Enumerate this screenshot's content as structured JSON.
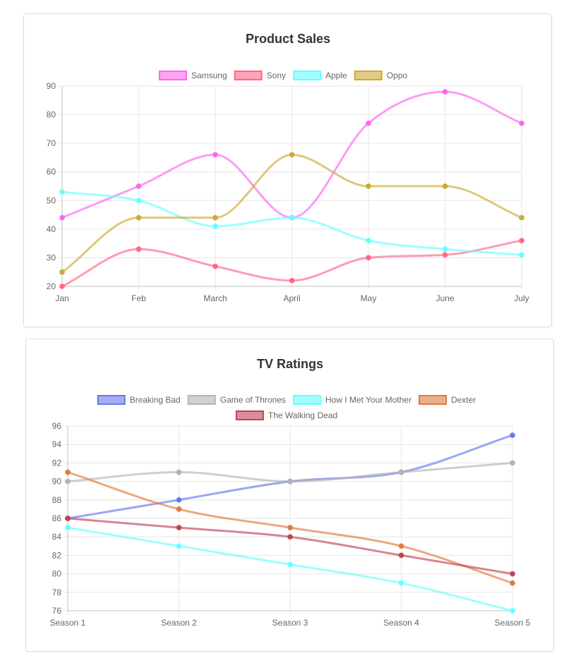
{
  "chart_data": [
    {
      "type": "line",
      "title": "Product Sales",
      "categories": [
        "Jan",
        "Feb",
        "March",
        "April",
        "May",
        "June",
        "July"
      ],
      "ylim": [
        20,
        90
      ],
      "yticks": [
        20,
        30,
        40,
        50,
        60,
        70,
        80,
        90
      ],
      "grid": true,
      "legend": "top",
      "series": [
        {
          "name": "Samsung",
          "color": "#ff66ee",
          "values": [
            44,
            55,
            66,
            44,
            77,
            88,
            77
          ]
        },
        {
          "name": "Sony",
          "color": "#ff6688",
          "values": [
            20,
            33,
            27,
            22,
            30,
            31,
            36
          ]
        },
        {
          "name": "Apple",
          "color": "#66ffff",
          "values": [
            53,
            50,
            41,
            44,
            36,
            33,
            31
          ]
        },
        {
          "name": "Oppo",
          "color": "#ccaa33",
          "values": [
            25,
            44,
            44,
            66,
            55,
            55,
            44
          ]
        }
      ]
    },
    {
      "type": "line",
      "title": "TV Ratings",
      "categories": [
        "Season 1",
        "Season 2",
        "Season 3",
        "Season 4",
        "Season 5"
      ],
      "ylim": [
        76,
        96
      ],
      "yticks": [
        76,
        78,
        80,
        82,
        84,
        86,
        88,
        90,
        92,
        94,
        96
      ],
      "grid": true,
      "legend": "top",
      "series": [
        {
          "name": "Breaking Bad",
          "color": "#6677ee",
          "values": [
            86,
            88,
            90,
            91,
            95
          ]
        },
        {
          "name": "Game of Thrones",
          "color": "#b3b3b3",
          "values": [
            90,
            91,
            90,
            91,
            92
          ]
        },
        {
          "name": "How I Met Your Mother",
          "color": "#66ffff",
          "values": [
            85,
            83,
            81,
            79,
            76
          ]
        },
        {
          "name": "Dexter",
          "color": "#e07a3d",
          "values": [
            91,
            87,
            85,
            83,
            79
          ]
        },
        {
          "name": "The Walking Dead",
          "color": "#c04455",
          "values": [
            86,
            85,
            84,
            82,
            80
          ]
        }
      ]
    }
  ]
}
